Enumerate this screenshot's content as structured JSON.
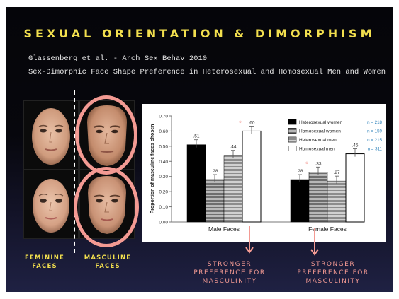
{
  "slide": {
    "title": "SEXUAL ORIENTATION & DIMORPHISM",
    "citation_line1": "Glassenberg et al. - Arch Sex Behav 2010",
    "citation_line2": "Sex-Dimorphic Face Shape Preference in Heterosexual and Homosexual Men and Women"
  },
  "faces": {
    "feminine_label_line1": "FEMININE",
    "feminine_label_line2": "FACES",
    "masculine_label_line1": "MASCULINE",
    "masculine_label_line2": "FACES"
  },
  "annotations": {
    "arrow1_line1": "STRONGER",
    "arrow1_line2": "PREFERENCE FOR",
    "arrow1_line3": "MASCULINITY",
    "arrow2_line1": "STRONGER",
    "arrow2_line2": "PREFERENCE FOR",
    "arrow2_line3": "MASCULINITY",
    "accent_color": "#f39a93"
  },
  "chart_data": {
    "type": "bar",
    "ylabel": "Proportion of masculine faces chosen",
    "ylim": [
      0,
      0.7
    ],
    "yticks": [
      "0.00",
      "0.10",
      "0.20",
      "0.30",
      "0.40",
      "0.50",
      "0.60",
      "0.70"
    ],
    "categories": [
      "Male Faces",
      "Female Faces"
    ],
    "series": [
      {
        "name": "Heterosexual women",
        "n": "n = 218",
        "values": [
          0.51,
          0.28
        ],
        "labels": [
          ".51",
          ".28"
        ],
        "fill": "#000000"
      },
      {
        "name": "Homosexual women",
        "n": "n = 159",
        "values": [
          0.28,
          0.33
        ],
        "labels": [
          ".28",
          ".33"
        ],
        "fill": "hatch-dark"
      },
      {
        "name": "Heterosexual men",
        "n": "n = 215",
        "values": [
          0.44,
          0.27
        ],
        "labels": [
          ".44",
          ".27"
        ],
        "fill": "hatch-light"
      },
      {
        "name": "Homosexual men",
        "n": "n = 311",
        "values": [
          0.6,
          0.45
        ],
        "labels": [
          ".60",
          ".45"
        ],
        "fill": "#ffffff"
      }
    ],
    "significance_marker": "*",
    "n_color": "#2a7fb8",
    "legend": "top-right"
  }
}
